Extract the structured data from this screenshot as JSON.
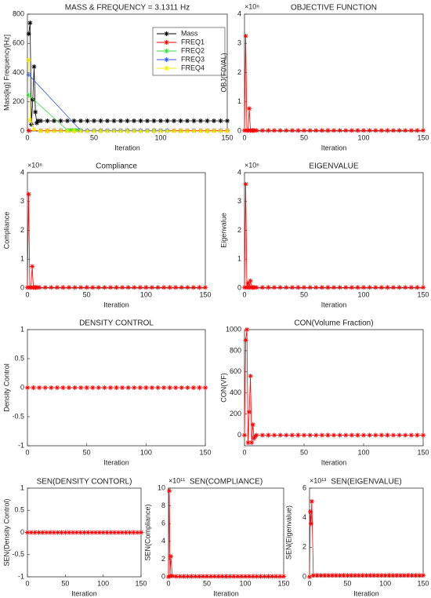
{
  "chart_data": [
    {
      "type": "scatter",
      "title": "MASS & FREQUENCY = 3.1311 Hz",
      "xlabel": "Iteration",
      "ylabel": "Mass[kg] Frequency[Hz]",
      "xlim": [
        0,
        150
      ],
      "ylim": [
        0,
        800
      ],
      "xticks": [
        0,
        50,
        100,
        150
      ],
      "yticks": [
        0,
        200,
        400,
        600,
        800
      ],
      "legend": "upper right",
      "series": [
        {
          "name": "Mass",
          "color": "#000000",
          "x": [
            1,
            2,
            3,
            4,
            5,
            6,
            7,
            8,
            10,
            15,
            20,
            25,
            30,
            35,
            40,
            45,
            50,
            55,
            60,
            65,
            70,
            75,
            80,
            85,
            90,
            95,
            100,
            105,
            110,
            115,
            120,
            125,
            130,
            135,
            140,
            145,
            150
          ],
          "values": [
            665,
            740,
            45,
            215,
            440,
            130,
            55,
            70,
            70,
            70,
            70,
            70,
            70,
            70,
            70,
            70,
            70,
            70,
            70,
            70,
            70,
            70,
            70,
            70,
            70,
            70,
            70,
            70,
            70,
            70,
            70,
            70,
            70,
            70,
            70,
            70,
            70
          ]
        },
        {
          "name": "FREQ1",
          "color": "#ff0000",
          "x": [
            1,
            10,
            15,
            20,
            25,
            30,
            35,
            40,
            45,
            50,
            55,
            60,
            65,
            70,
            75,
            80,
            85,
            90,
            95,
            100,
            105,
            110,
            115,
            120,
            125,
            130,
            135,
            140,
            145,
            150
          ],
          "values": [
            3,
            3,
            3,
            3,
            3,
            3,
            3,
            3,
            3,
            3,
            3,
            3,
            3,
            3,
            3,
            3,
            3,
            3,
            3,
            3,
            3,
            3,
            3,
            3,
            3,
            3,
            3,
            3,
            3,
            3
          ]
        },
        {
          "name": "FREQ2",
          "color": "#33dd33",
          "x": [
            1,
            30,
            32,
            34,
            36,
            38,
            40
          ],
          "values": [
            245,
            6,
            6,
            6,
            6,
            6,
            6
          ]
        },
        {
          "name": "FREQ3",
          "color": "#3355ee",
          "x": [
            1,
            40,
            45,
            50,
            55,
            60,
            65,
            70,
            75,
            80,
            85,
            90,
            95,
            100,
            105
          ],
          "values": [
            385,
            4,
            4,
            4,
            4,
            4,
            4,
            4,
            4,
            4,
            4,
            4,
            4,
            4,
            4
          ]
        },
        {
          "name": "FREQ4",
          "color": "#eeee00",
          "x": [
            1,
            2,
            5,
            10,
            15,
            20,
            25,
            30,
            35,
            40,
            45,
            50,
            55,
            60,
            65,
            70,
            75,
            80,
            85,
            90,
            95,
            100,
            105,
            110,
            115,
            120,
            125,
            130,
            135,
            140,
            145,
            150
          ],
          "values": [
            485,
            75,
            10,
            0,
            0,
            0,
            0,
            0,
            0,
            0,
            0,
            0,
            0,
            0,
            0,
            0,
            0,
            0,
            0,
            0,
            0,
            0,
            0,
            0,
            0,
            0,
            0,
            0,
            0,
            0,
            0,
            0
          ]
        }
      ]
    },
    {
      "type": "scatter",
      "title": "OBJECTIVE FUNCTION",
      "xlabel": "Iteration",
      "ylabel": "OBJ(F0VAL)",
      "y_scale_label": "×10⁸",
      "xlim": [
        0,
        150
      ],
      "ylim": [
        0,
        4
      ],
      "xticks": [
        0,
        50,
        100,
        150
      ],
      "yticks": [
        0,
        1,
        2,
        3,
        4
      ],
      "series": [
        {
          "color": "#ff0000",
          "x": [
            0,
            1,
            2,
            3,
            4,
            5,
            6,
            7,
            8,
            10,
            15,
            20,
            25,
            30,
            35,
            40,
            45,
            50,
            55,
            60,
            65,
            70,
            75,
            80,
            85,
            90,
            95,
            100,
            105,
            110,
            115,
            120,
            125,
            130,
            135,
            140,
            145,
            150
          ],
          "values": [
            0.02,
            3.25,
            0.02,
            0.02,
            0.77,
            0.02,
            0.02,
            0.02,
            0.02,
            0.02,
            0.02,
            0.02,
            0.02,
            0.02,
            0.02,
            0.02,
            0.02,
            0.02,
            0.02,
            0.02,
            0.02,
            0.02,
            0.02,
            0.02,
            0.02,
            0.02,
            0.02,
            0.02,
            0.02,
            0.02,
            0.02,
            0.02,
            0.02,
            0.02,
            0.02,
            0.02,
            0.02,
            0.02
          ]
        }
      ]
    },
    {
      "type": "scatter",
      "title": "Compliance",
      "xlabel": "Iteration",
      "ylabel": "Compliance",
      "y_scale_label": "×10⁸",
      "xlim": [
        0,
        150
      ],
      "ylim": [
        0,
        4
      ],
      "xticks": [
        0,
        50,
        100,
        150
      ],
      "yticks": [
        0,
        1,
        2,
        3,
        4
      ],
      "series": [
        {
          "color": "#ff0000",
          "x": [
            0,
            1,
            2,
            3,
            4,
            5,
            6,
            7,
            8,
            10,
            15,
            20,
            25,
            30,
            35,
            40,
            45,
            50,
            55,
            60,
            65,
            70,
            75,
            80,
            85,
            90,
            95,
            100,
            105,
            110,
            115,
            120,
            125,
            130,
            135,
            140,
            145,
            150
          ],
          "values": [
            0.02,
            3.25,
            0.02,
            0.02,
            0.75,
            0.02,
            0.02,
            0.02,
            0.02,
            0.02,
            0.02,
            0.02,
            0.02,
            0.02,
            0.02,
            0.02,
            0.02,
            0.02,
            0.02,
            0.02,
            0.02,
            0.02,
            0.02,
            0.02,
            0.02,
            0.02,
            0.02,
            0.02,
            0.02,
            0.02,
            0.02,
            0.02,
            0.02,
            0.02,
            0.02,
            0.02,
            0.02,
            0.02
          ]
        }
      ]
    },
    {
      "type": "scatter",
      "title": "EIGENVALUE",
      "xlabel": "Iteration",
      "ylabel": "Eigenvalue",
      "y_scale_label": "×10⁶",
      "xlim": [
        0,
        150
      ],
      "ylim": [
        0,
        4
      ],
      "xticks": [
        0,
        50,
        100,
        150
      ],
      "yticks": [
        0,
        1,
        2,
        3,
        4
      ],
      "series": [
        {
          "color": "#ff0000",
          "x": [
            0,
            1,
            2,
            3,
            4,
            5,
            6,
            7,
            8,
            10,
            15,
            20,
            25,
            30,
            35,
            40,
            45,
            50,
            55,
            60,
            65,
            70,
            75,
            80,
            85,
            90,
            95,
            100,
            105,
            110,
            115,
            120,
            125,
            130,
            135,
            140,
            145,
            150
          ],
          "values": [
            0.02,
            3.6,
            0.02,
            0.17,
            0.02,
            0.25,
            0.02,
            0.02,
            0.02,
            0.02,
            0.02,
            0.02,
            0.02,
            0.02,
            0.02,
            0.02,
            0.02,
            0.02,
            0.02,
            0.02,
            0.02,
            0.02,
            0.02,
            0.02,
            0.02,
            0.02,
            0.02,
            0.02,
            0.02,
            0.02,
            0.02,
            0.02,
            0.02,
            0.02,
            0.02,
            0.02,
            0.02,
            0.02
          ]
        }
      ]
    },
    {
      "type": "scatter",
      "title": "DENSITY CONTROL",
      "xlabel": "Iteration",
      "ylabel": "Density Control",
      "xlim": [
        0,
        150
      ],
      "ylim": [
        -1,
        1
      ],
      "xticks": [
        0,
        50,
        100,
        150
      ],
      "yticks": [
        -1,
        -0.5,
        0,
        0.5,
        1
      ],
      "series": [
        {
          "color": "#ff0000",
          "x": [
            0,
            5,
            10,
            15,
            20,
            25,
            30,
            35,
            40,
            45,
            50,
            55,
            60,
            65,
            70,
            75,
            80,
            85,
            90,
            95,
            100,
            105,
            110,
            115,
            120,
            125,
            130,
            135,
            140,
            145,
            150
          ],
          "values": [
            0,
            0,
            0,
            0,
            0,
            0,
            0,
            0,
            0,
            0,
            0,
            0,
            0,
            0,
            0,
            0,
            0,
            0,
            0,
            0,
            0,
            0,
            0,
            0,
            0,
            0,
            0,
            0,
            0,
            0,
            0
          ]
        }
      ]
    },
    {
      "type": "scatter",
      "title": "CON(Volume Fraction)",
      "xlabel": "Iteration",
      "ylabel": "CON(VF)",
      "xlim": [
        0,
        150
      ],
      "ylim": [
        -100,
        1000
      ],
      "xticks": [
        0,
        50,
        100,
        150
      ],
      "yticks": [
        0,
        200,
        400,
        600,
        800,
        1000
      ],
      "series": [
        {
          "color": "#ff0000",
          "x": [
            0,
            1,
            2,
            3,
            4,
            5,
            6,
            7,
            8,
            9,
            10,
            15,
            20,
            25,
            30,
            35,
            40,
            45,
            50,
            55,
            60,
            65,
            70,
            75,
            80,
            85,
            90,
            95,
            100,
            105,
            110,
            115,
            120,
            125,
            130,
            135,
            140,
            145,
            150
          ],
          "values": [
            0,
            900,
            1000,
            -70,
            220,
            560,
            -70,
            100,
            -30,
            -10,
            0,
            0,
            0,
            0,
            0,
            0,
            0,
            0,
            0,
            0,
            0,
            0,
            0,
            0,
            0,
            0,
            0,
            0,
            0,
            0,
            0,
            0,
            0,
            0,
            0,
            0,
            0,
            0,
            0
          ]
        }
      ]
    },
    {
      "type": "scatter",
      "title": "SEN(DENSITY CONTORL)",
      "xlabel": "Iteration",
      "ylabel": "SEN(Density Control)",
      "xlim": [
        0,
        150
      ],
      "ylim": [
        -1,
        1
      ],
      "xticks": [
        0,
        50,
        100,
        150
      ],
      "yticks": [
        -1,
        -0.5,
        0,
        0.5,
        1
      ],
      "series": [
        {
          "color": "#ff0000",
          "x": [
            0,
            5,
            10,
            15,
            20,
            25,
            30,
            35,
            40,
            45,
            50,
            55,
            60,
            65,
            70,
            75,
            80,
            85,
            90,
            95,
            100,
            105,
            110,
            115,
            120,
            125,
            130,
            135,
            140,
            145,
            150
          ],
          "values": [
            0,
            0,
            0,
            0,
            0,
            0,
            0,
            0,
            0,
            0,
            0,
            0,
            0,
            0,
            0,
            0,
            0,
            0,
            0,
            0,
            0,
            0,
            0,
            0,
            0,
            0,
            0,
            0,
            0,
            0,
            0
          ]
        }
      ]
    },
    {
      "type": "scatter",
      "title": "SEN(COMPLIANCE)",
      "xlabel": "Iteration",
      "ylabel": "SEN(Compliance)",
      "y_scale_label": "×10¹¹",
      "xlim": [
        0,
        150
      ],
      "ylim": [
        0,
        10
      ],
      "xticks": [
        0,
        50,
        100,
        150
      ],
      "yticks": [
        0,
        2,
        4,
        6,
        8,
        10
      ],
      "series": [
        {
          "color": "#ff0000",
          "x": [
            0,
            1,
            2,
            3,
            5,
            10,
            15,
            20,
            25,
            30,
            35,
            40,
            45,
            50,
            55,
            60,
            65,
            70,
            75,
            80,
            85,
            90,
            95,
            100,
            105,
            110,
            115,
            120,
            125,
            130,
            135,
            140,
            145,
            150
          ],
          "values": [
            0,
            9.7,
            0.1,
            2.3,
            0.1,
            0.05,
            0.05,
            0.05,
            0.05,
            0.05,
            0.05,
            0.05,
            0.05,
            0.05,
            0.05,
            0.05,
            0.05,
            0.05,
            0.05,
            0.05,
            0.05,
            0.05,
            0.05,
            0.05,
            0.05,
            0.05,
            0.05,
            0.05,
            0.05,
            0.05,
            0.05,
            0.05,
            0.05,
            0.05
          ]
        }
      ]
    },
    {
      "type": "scatter",
      "title": "SEN(EIGENVALUE)",
      "xlabel": "Iteration",
      "ylabel": "SEN(Eigenvalue)",
      "y_scale_label": "×10¹³",
      "xlim": [
        0,
        150
      ],
      "ylim": [
        0,
        6
      ],
      "xticks": [
        0,
        50,
        100,
        150
      ],
      "yticks": [
        0,
        2,
        4,
        6
      ],
      "series": [
        {
          "color": "#ff0000",
          "x": [
            0,
            1,
            2,
            3,
            5,
            10,
            15,
            20,
            25,
            30,
            35,
            40,
            45,
            50,
            55,
            60,
            65,
            70,
            75,
            80,
            85,
            90,
            95,
            100,
            105,
            110,
            115,
            120,
            125,
            130,
            135,
            140,
            145,
            150
          ],
          "values": [
            0,
            4.4,
            3.6,
            5.1,
            0.1,
            0.1,
            0.1,
            0.1,
            0.1,
            0.1,
            0.1,
            0.1,
            0.1,
            0.1,
            0.1,
            0.1,
            0.1,
            0.1,
            0.1,
            0.1,
            0.1,
            0.1,
            0.1,
            0.1,
            0.1,
            0.1,
            0.1,
            0.1,
            0.1,
            0.1,
            0.1,
            0.1,
            0.1,
            0.1
          ]
        }
      ]
    }
  ]
}
